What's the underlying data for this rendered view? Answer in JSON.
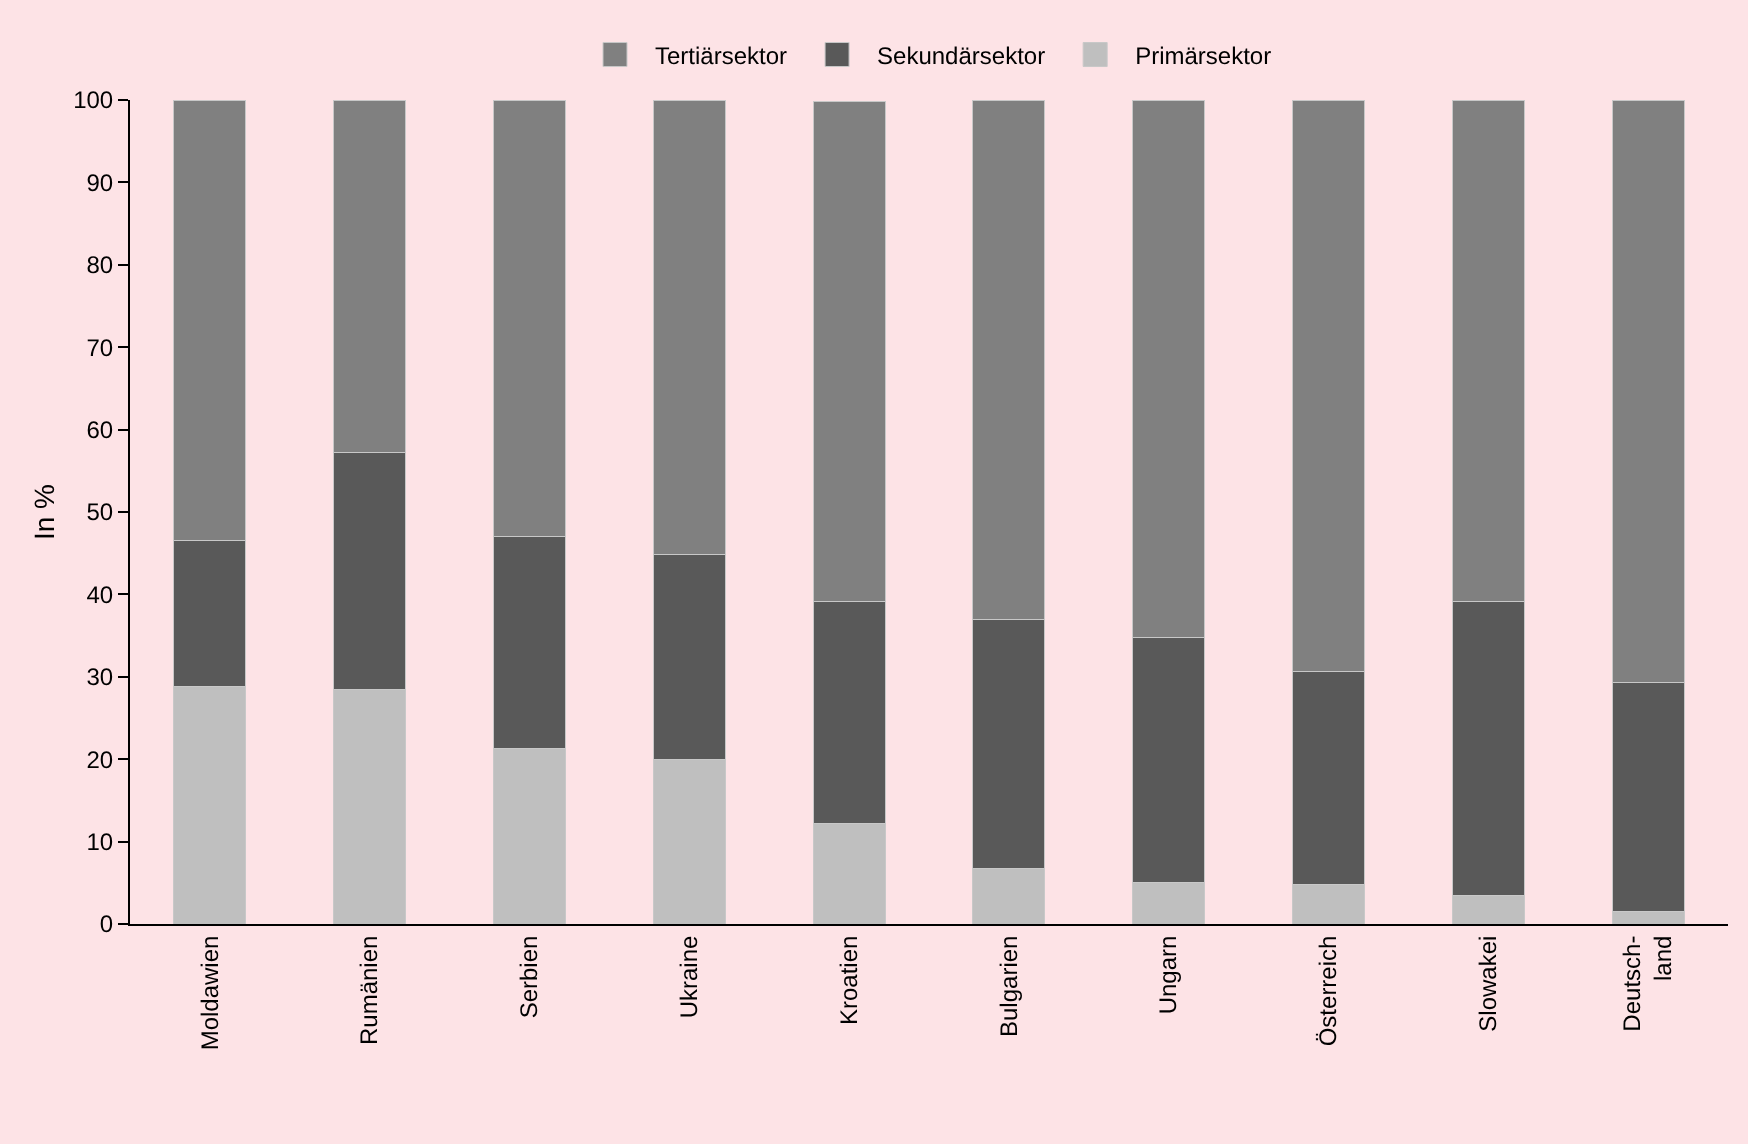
{
  "chart_data": {
    "type": "bar",
    "stacked": true,
    "ylabel": "In %",
    "categories": [
      "Moldawien",
      "Rumänien",
      "Serbien",
      "Ukraine",
      "Kroatien",
      "Bulgarien",
      "Ungarn",
      "Österreich",
      "Slowakei",
      "Deutsch-\nland"
    ],
    "series": [
      {
        "name": "Primärsektor",
        "color": "#bfbfbf",
        "values": [
          28.8,
          28.5,
          21.3,
          20.0,
          12.2,
          6.7,
          5.0,
          4.8,
          3.4,
          1.5
        ]
      },
      {
        "name": "Sekundärsektor",
        "color": "#595959",
        "values": [
          17.7,
          28.7,
          25.7,
          24.8,
          26.9,
          30.2,
          29.8,
          25.8,
          35.8,
          27.8
        ]
      },
      {
        "name": "Tertiärsektor",
        "color": "#808080",
        "values": [
          53.5,
          42.8,
          53.0,
          55.2,
          60.7,
          63.1,
          65.2,
          69.4,
          60.8,
          70.7
        ]
      }
    ],
    "ylim": [
      0,
      100
    ],
    "yticks": [
      0,
      10,
      20,
      30,
      40,
      50,
      60,
      70,
      80,
      90,
      100
    ],
    "grid": false,
    "legend": "top"
  }
}
